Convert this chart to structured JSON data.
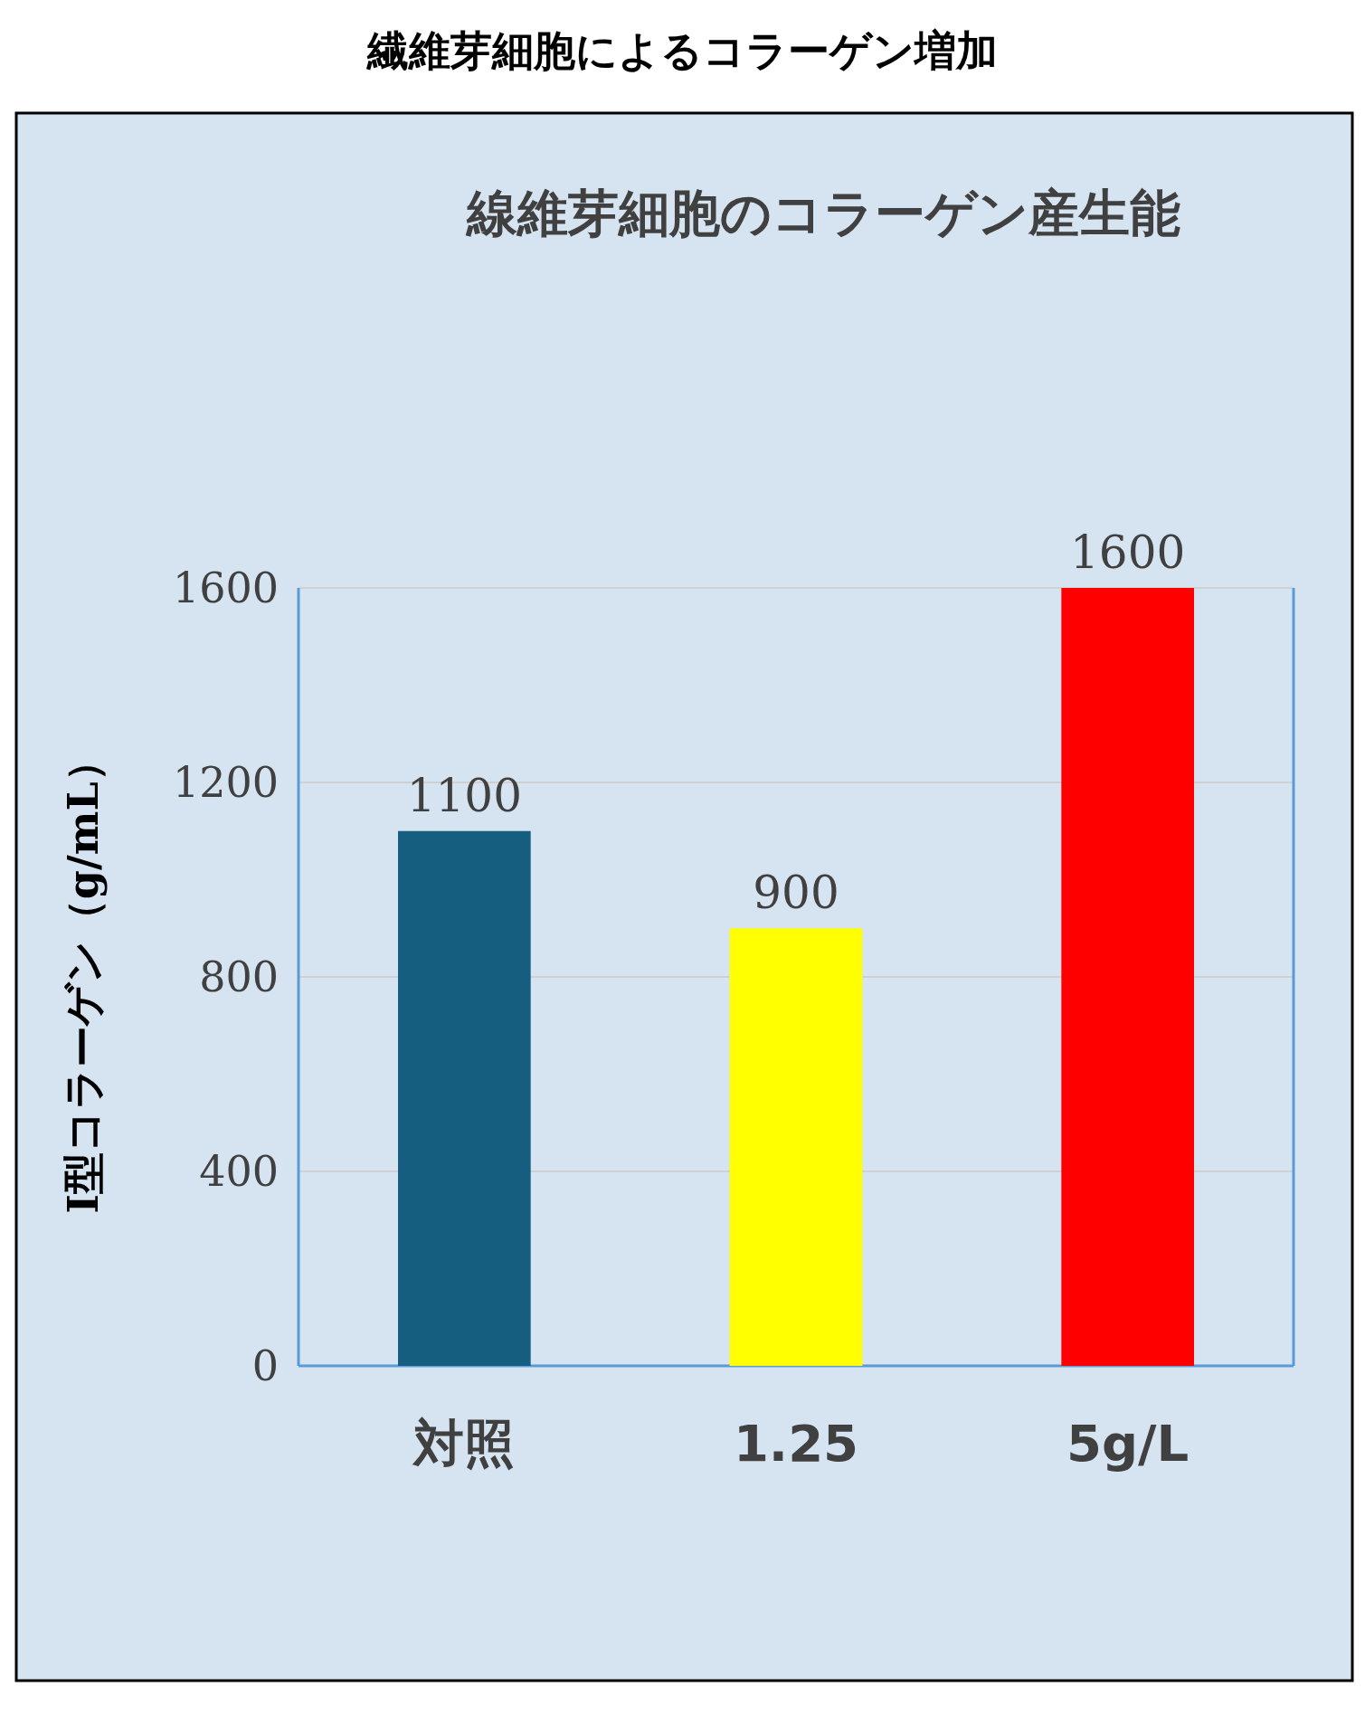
{
  "chart_data": {
    "type": "bar",
    "title": "繊維芽細胞によるコラーゲン増加",
    "subtitle": "線維芽細胞のコラーゲン産生能",
    "ylabel": "I型コラーゲン（g/mL）",
    "categories": [
      "対照",
      "1.25",
      "5g/L"
    ],
    "values": [
      1100,
      900,
      1600
    ],
    "colors": [
      "#165e80",
      "#ffff00",
      "#ff0000"
    ],
    "ylim": [
      0,
      1600
    ],
    "yticks": [
      0,
      400,
      800,
      1200,
      1600
    ],
    "grid": "y",
    "data_labels": true
  }
}
